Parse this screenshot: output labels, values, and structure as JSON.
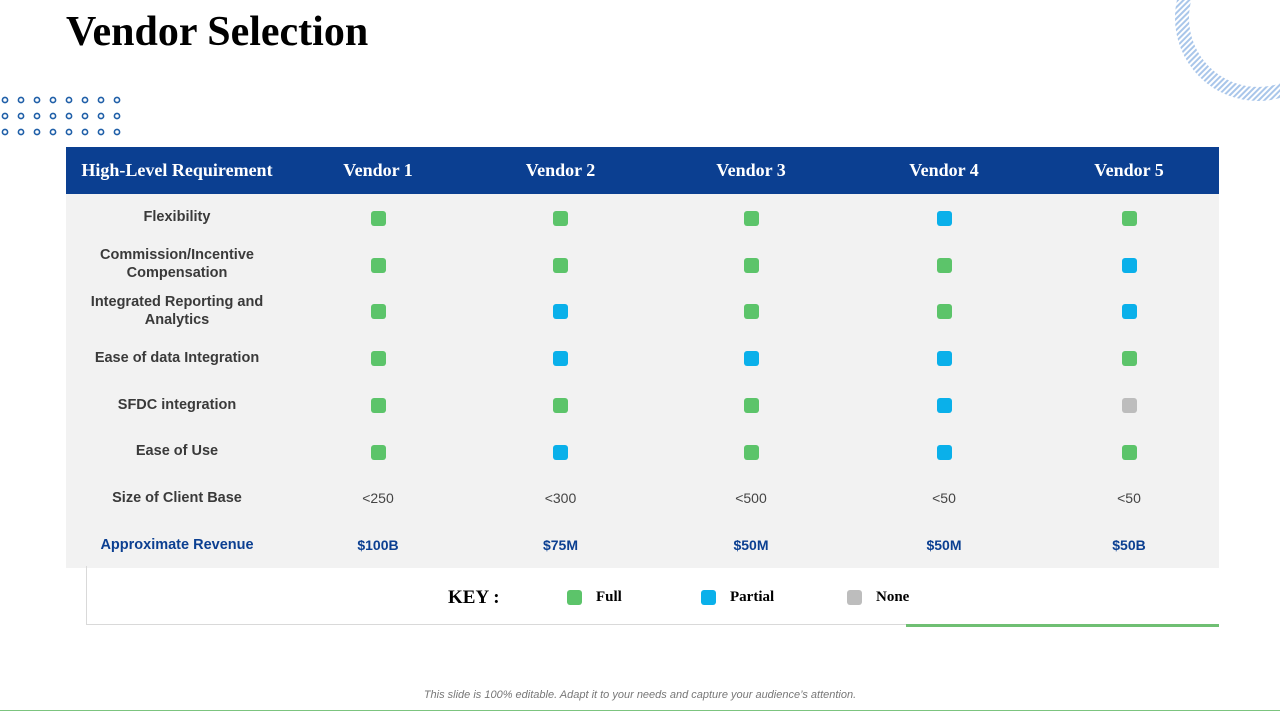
{
  "title": "Vendor Selection",
  "colors": {
    "header_bg": "#0b3f91",
    "full": "#5cc46a",
    "partial": "#0ab0ea",
    "none": "#bdbdbd",
    "revenue_text": "#0b3f91"
  },
  "table": {
    "headers": [
      "High-Level Requirement",
      "Vendor 1",
      "Vendor 2",
      "Vendor 3",
      "Vendor 4",
      "Vendor 5"
    ],
    "rows": [
      {
        "label": "Flexibility",
        "ratings": [
          "full",
          "full",
          "full",
          "partial",
          "full"
        ]
      },
      {
        "label": "Commission/Incentive Compensation",
        "ratings": [
          "full",
          "full",
          "full",
          "full",
          "partial"
        ]
      },
      {
        "label": "Integrated Reporting and Analytics",
        "ratings": [
          "full",
          "partial",
          "full",
          "full",
          "partial"
        ]
      },
      {
        "label": "Ease of data Integration",
        "ratings": [
          "full",
          "partial",
          "partial",
          "partial",
          "full"
        ]
      },
      {
        "label": "SFDC integration",
        "ratings": [
          "full",
          "full",
          "full",
          "partial",
          "none"
        ]
      },
      {
        "label": "Ease of Use",
        "ratings": [
          "full",
          "partial",
          "full",
          "partial",
          "full"
        ]
      }
    ],
    "client_base": {
      "label": "Size of Client Base",
      "values": [
        "<250",
        "<300",
        "<500",
        "<50",
        "<50"
      ]
    },
    "revenue": {
      "label": "Approximate Revenue",
      "values": [
        "$100B",
        "$75M",
        "$50M",
        "$50M",
        "$50B"
      ]
    }
  },
  "key": {
    "label": "KEY :",
    "items": [
      {
        "type": "full",
        "label": "Full"
      },
      {
        "type": "partial",
        "label": "Partial"
      },
      {
        "type": "none",
        "label": "None"
      }
    ]
  },
  "footer": "This slide is 100% editable. Adapt it to your needs and capture your audience’s attention."
}
